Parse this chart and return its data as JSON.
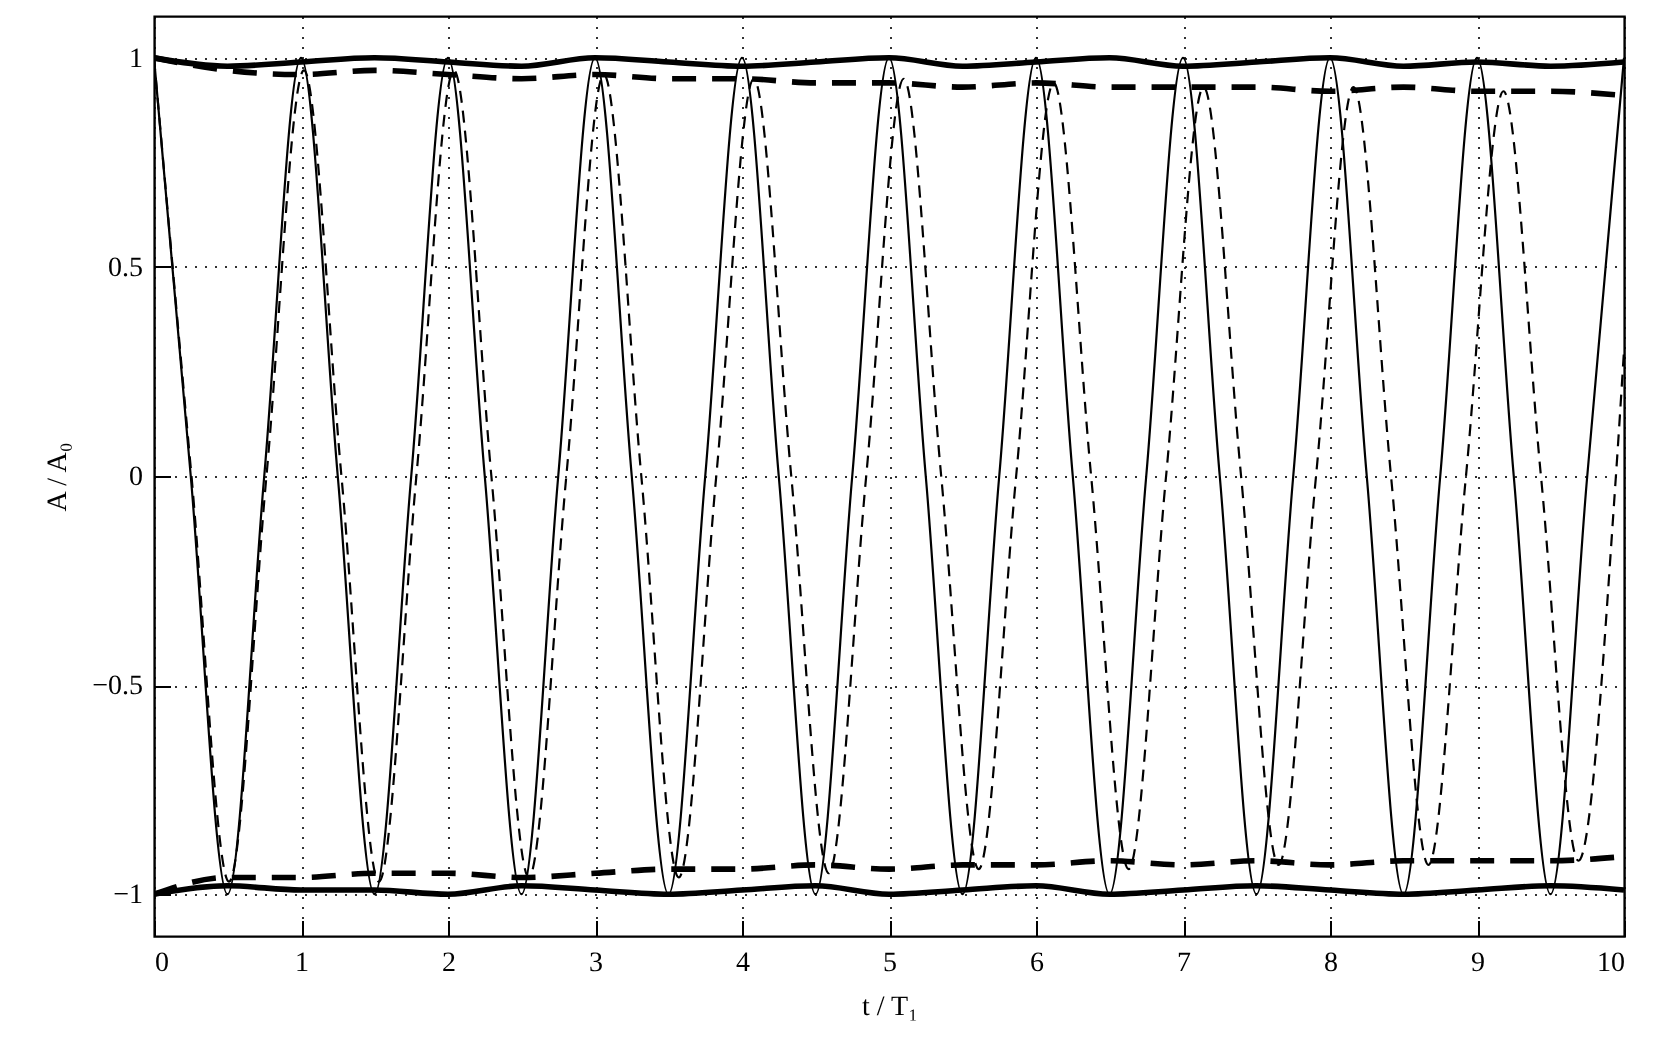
{
  "chart_data": {
    "type": "line",
    "xlabel": "t / T₁",
    "ylabel": "A / A₀",
    "xlim": [
      0,
      10
    ],
    "ylim": [
      -1.1,
      1.1
    ],
    "xticks": [
      0,
      1,
      2,
      3,
      4,
      5,
      6,
      7,
      8,
      9,
      10
    ],
    "yticks": [
      {
        "value": -1,
        "label": "−1"
      },
      {
        "value": -0.5,
        "label": "−0.5"
      },
      0,
      0.5,
      1
    ],
    "grid": true,
    "marker": "none",
    "series": [
      {
        "color": "#000000",
        "line_style": "solid",
        "x": [
          0,
          0.25,
          0.5,
          0.75,
          1,
          1.25,
          1.5,
          1.75,
          2,
          2.25,
          2.5,
          2.75,
          3,
          3.25,
          3.5,
          3.75,
          4,
          4.25,
          4.5,
          4.75,
          5,
          5.25,
          5.5,
          5.75,
          6,
          6.25,
          6.5,
          6.75,
          7,
          7.25,
          7.5,
          7.75,
          8,
          8.25,
          8.5,
          8.75,
          9,
          9.25,
          9.5,
          9.75,
          10
        ],
        "values": [
          1,
          0,
          -1,
          0,
          1,
          0,
          -1,
          0,
          1,
          0,
          -1,
          0,
          1,
          0,
          -1,
          0,
          1,
          0,
          -1,
          0,
          1,
          0,
          -1,
          0,
          1,
          0,
          -1,
          0,
          1,
          0,
          -1,
          0,
          1,
          0,
          -1,
          0,
          1,
          0,
          -1,
          0,
          1
        ]
      },
      {
        "color": "#000000",
        "line_style": "dashed",
        "x": [
          0,
          0.255,
          0.51,
          0.765,
          1.02,
          1.275,
          1.53,
          1.785,
          2.04,
          2.295,
          2.55,
          2.805,
          3.06,
          3.315,
          3.57,
          3.825,
          4.08,
          4.335,
          4.59,
          4.845,
          5.1,
          5.355,
          5.61,
          5.865,
          6.12,
          6.375,
          6.63,
          6.885,
          7.14,
          7.395,
          7.65,
          7.905,
          8.16,
          8.415,
          8.67,
          8.925,
          9.18,
          9.435,
          9.69,
          9.945,
          10
        ],
        "values": [
          1,
          0,
          -0.97,
          0,
          0.97,
          0,
          -0.97,
          0,
          0.97,
          0,
          -0.96,
          0,
          0.96,
          0,
          -0.96,
          0,
          0.95,
          0,
          -0.95,
          0,
          0.95,
          0,
          -0.94,
          0,
          0.94,
          0,
          -0.94,
          0,
          0.93,
          0,
          -0.93,
          0,
          0.93,
          0,
          -0.93,
          0,
          0.92,
          0,
          -0.92,
          0,
          0.3
        ]
      },
      {
        "color": "#000000",
        "line_style": "solid",
        "x": [
          0,
          0.5,
          1,
          1.5,
          2,
          2.5,
          3,
          3.5,
          4,
          4.5,
          5,
          5.5,
          6,
          6.5,
          7,
          7.5,
          8,
          8.5,
          9,
          9.5,
          10
        ],
        "values": [
          1,
          0.98,
          0.99,
          1,
          0.99,
          0.98,
          1,
          0.99,
          0.98,
          0.99,
          1,
          0.98,
          0.99,
          1,
          0.98,
          0.99,
          1,
          0.98,
          0.99,
          0.98,
          0.99
        ]
      },
      {
        "color": "#000000",
        "line_style": "solid",
        "x": [
          0,
          0.5,
          1,
          1.5,
          2,
          2.5,
          3,
          3.5,
          4,
          4.5,
          5,
          5.5,
          6,
          6.5,
          7,
          7.5,
          8,
          8.5,
          9,
          9.5,
          10
        ],
        "values": [
          -1,
          -0.98,
          -0.99,
          -0.99,
          -1,
          -0.98,
          -0.99,
          -1,
          -0.99,
          -0.98,
          -1,
          -0.99,
          -0.98,
          -1,
          -0.99,
          -0.98,
          -0.99,
          -1,
          -0.99,
          -0.98,
          -0.99
        ]
      },
      {
        "color": "#000000",
        "line_style": "dashed",
        "x": [
          0,
          0.5,
          1,
          1.5,
          2,
          2.5,
          3,
          3.5,
          4,
          4.5,
          5,
          5.5,
          6,
          6.5,
          7,
          7.5,
          8,
          8.5,
          9,
          9.5,
          10
        ],
        "values": [
          1,
          0.97,
          0.96,
          0.97,
          0.96,
          0.95,
          0.96,
          0.95,
          0.95,
          0.94,
          0.94,
          0.93,
          0.94,
          0.93,
          0.93,
          0.93,
          0.92,
          0.93,
          0.92,
          0.92,
          0.91
        ]
      },
      {
        "color": "#000000",
        "line_style": "dashed",
        "x": [
          0,
          0.5,
          1,
          1.5,
          2,
          2.5,
          3,
          3.5,
          4,
          4.5,
          5,
          5.5,
          6,
          6.5,
          7,
          7.5,
          8,
          8.5,
          9,
          9.5,
          10
        ],
        "values": [
          -1,
          -0.96,
          -0.96,
          -0.95,
          -0.95,
          -0.96,
          -0.95,
          -0.94,
          -0.94,
          -0.93,
          -0.94,
          -0.93,
          -0.93,
          -0.92,
          -0.93,
          -0.92,
          -0.93,
          -0.92,
          -0.92,
          -0.92,
          -0.91
        ]
      }
    ]
  }
}
